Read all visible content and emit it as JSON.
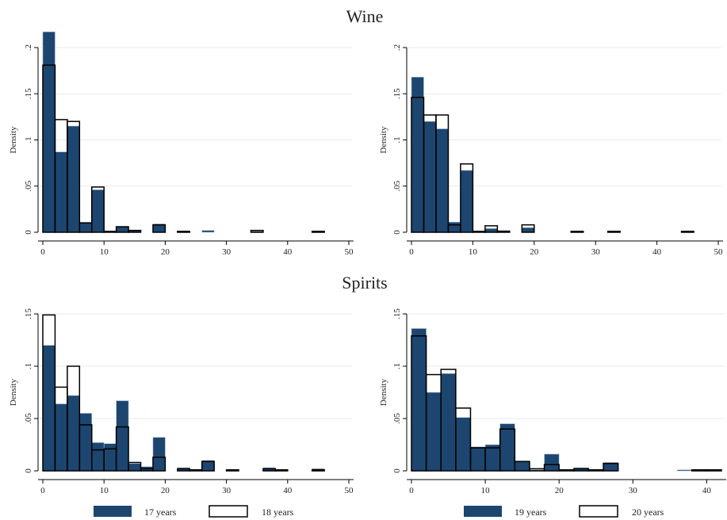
{
  "titles": {
    "wine": "Wine",
    "spirits": "Spirits"
  },
  "colors": {
    "filled": "#1c4670",
    "outline": "#000000",
    "grid": "#eaeaea",
    "bg": "#ffffff"
  },
  "legends": [
    {
      "filled_label": "17 years",
      "outline_label": "18 years"
    },
    {
      "filled_label": "19 years",
      "outline_label": "20 years"
    }
  ],
  "chart_data": [
    {
      "type": "bar",
      "title": "",
      "section": "Wine",
      "ylabel": "Density",
      "xlim": [
        0,
        50
      ],
      "ylim": [
        0,
        0.2
      ],
      "xticks": [
        "0",
        "10",
        "20",
        "30",
        "40",
        "50"
      ],
      "yticks": [
        ".2",
        ".15",
        ".1",
        ".05",
        "0"
      ],
      "bin_width": 2,
      "grid": true,
      "bins_start": [
        0,
        2,
        4,
        6,
        8,
        10,
        12,
        14,
        16,
        18,
        20,
        22,
        24,
        26,
        28,
        30,
        32,
        34,
        36,
        38,
        40,
        42,
        44,
        46,
        48
      ],
      "series": [
        {
          "name": "17 years",
          "style": "filled",
          "values": [
            0.217,
            0.087,
            0.115,
            0.011,
            0.046,
            0.001,
            0.006,
            0.002,
            0,
            0.009,
            0,
            0.001,
            0,
            0.002,
            0,
            0,
            0,
            0.001,
            0,
            0,
            0,
            0,
            0.001,
            0,
            0
          ]
        },
        {
          "name": "18 years",
          "style": "outline",
          "values": [
            0.181,
            0.122,
            0.12,
            0.01,
            0.049,
            0.001,
            0.006,
            0.002,
            0,
            0.008,
            0,
            0.001,
            0,
            0,
            0,
            0,
            0,
            0.002,
            0,
            0,
            0,
            0,
            0.001,
            0,
            0
          ]
        }
      ]
    },
    {
      "type": "bar",
      "title": "",
      "section": "Wine",
      "ylabel": "Density",
      "xlim": [
        0,
        50
      ],
      "ylim": [
        0,
        0.2
      ],
      "xticks": [
        "0",
        "10",
        "20",
        "30",
        "40",
        "50"
      ],
      "yticks": [
        ".2",
        ".15",
        ".1",
        ".05",
        "0"
      ],
      "bin_width": 2,
      "grid": true,
      "bins_start": [
        0,
        2,
        4,
        6,
        8,
        10,
        12,
        14,
        16,
        18,
        20,
        22,
        24,
        26,
        28,
        30,
        32,
        34,
        36,
        38,
        40,
        42,
        44,
        46,
        48
      ],
      "series": [
        {
          "name": "19 years",
          "style": "filled",
          "values": [
            0.168,
            0.12,
            0.112,
            0.011,
            0.067,
            0.001,
            0.004,
            0.002,
            0,
            0.005,
            0,
            0,
            0,
            0.001,
            0,
            0,
            0.001,
            0,
            0,
            0,
            0,
            0,
            0.001,
            0,
            0
          ]
        },
        {
          "name": "20 years",
          "style": "outline",
          "values": [
            0.146,
            0.127,
            0.127,
            0.008,
            0.074,
            0.001,
            0.007,
            0.001,
            0,
            0.008,
            0,
            0,
            0,
            0.001,
            0,
            0,
            0.001,
            0,
            0,
            0,
            0,
            0,
            0.001,
            0,
            0
          ]
        }
      ]
    },
    {
      "type": "bar",
      "title": "",
      "section": "Spirits",
      "ylabel": "Density",
      "xlim": [
        0,
        50
      ],
      "ylim": [
        0,
        0.15
      ],
      "xticks": [
        "0",
        "10",
        "20",
        "30",
        "40",
        "50"
      ],
      "yticks": [
        ".15",
        ".1",
        ".05",
        "0"
      ],
      "bin_width": 2,
      "grid": true,
      "bins_start": [
        0,
        2,
        4,
        6,
        8,
        10,
        12,
        14,
        16,
        18,
        20,
        22,
        24,
        26,
        28,
        30,
        32,
        34,
        36,
        38,
        40,
        42,
        44,
        46
      ],
      "series": [
        {
          "name": "17 years",
          "style": "filled",
          "values": [
            0.12,
            0.064,
            0.072,
            0.055,
            0.027,
            0.026,
            0.067,
            0.007,
            0.004,
            0.032,
            0,
            0.003,
            0.001,
            0.01,
            0,
            0.001,
            0,
            0,
            0.003,
            0.001,
            0,
            0,
            0.002,
            0
          ]
        },
        {
          "name": "18 years",
          "style": "outline",
          "values": [
            0.149,
            0.08,
            0.1,
            0.044,
            0.02,
            0.021,
            0.042,
            0.008,
            0.002,
            0.013,
            0,
            0.002,
            0.001,
            0.009,
            0,
            0.001,
            0,
            0,
            0.002,
            0.001,
            0,
            0,
            0.001,
            0
          ]
        }
      ]
    },
    {
      "type": "bar",
      "title": "",
      "section": "Spirits",
      "ylabel": "Density",
      "xlim": [
        0,
        42
      ],
      "ylim": [
        0,
        0.15
      ],
      "xticks": [
        "0",
        "10",
        "20",
        "30",
        "40"
      ],
      "yticks": [
        ".15",
        ".1",
        ".05",
        "0"
      ],
      "bin_width": 2,
      "grid": true,
      "bins_start": [
        0,
        2,
        4,
        6,
        8,
        10,
        12,
        14,
        16,
        18,
        20,
        22,
        24,
        26,
        28,
        30,
        32,
        34,
        36,
        38,
        40
      ],
      "series": [
        {
          "name": "19 years",
          "style": "filled",
          "values": [
            0.136,
            0.075,
            0.093,
            0.051,
            0.023,
            0.025,
            0.045,
            0.009,
            0.001,
            0.016,
            0.001,
            0.003,
            0.001,
            0.008,
            0,
            0,
            0,
            0,
            0.001,
            0,
            0.001
          ]
        },
        {
          "name": "20 years",
          "style": "outline",
          "values": [
            0.129,
            0.092,
            0.097,
            0.06,
            0.022,
            0.022,
            0.04,
            0.009,
            0.002,
            0.006,
            0.001,
            0.002,
            0.001,
            0.007,
            0,
            0,
            0,
            0,
            0,
            0.001,
            0.001
          ]
        }
      ]
    }
  ]
}
